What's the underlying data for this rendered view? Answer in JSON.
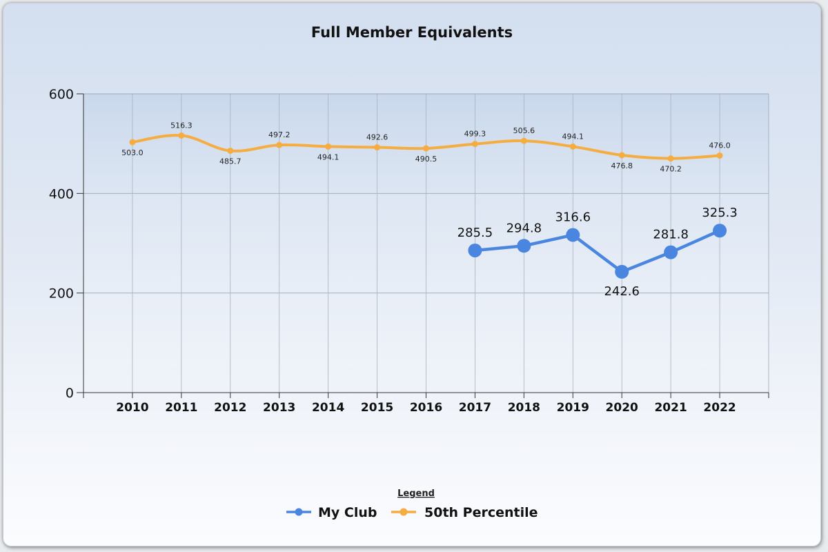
{
  "chart_data": {
    "type": "line",
    "title": "Full Member Equivalents",
    "categories": [
      "2010",
      "2011",
      "2012",
      "2013",
      "2014",
      "2015",
      "2016",
      "2017",
      "2018",
      "2019",
      "2020",
      "2021",
      "2022"
    ],
    "yticks": [
      "0",
      "200",
      "400",
      "600"
    ],
    "ylim": [
      0,
      600
    ],
    "grid": true,
    "legend_title": "Legend",
    "legend_position": "bottom-center",
    "series": [
      {
        "name": "My Club",
        "color": "#4a86e0",
        "values": [
          null,
          null,
          null,
          null,
          null,
          null,
          null,
          285.5,
          294.8,
          316.6,
          242.6,
          281.8,
          325.3
        ],
        "labels": [
          "",
          "",
          "",
          "",
          "",
          "",
          "",
          "285.5",
          "294.8",
          "316.6",
          "242.6",
          "281.8",
          "325.3"
        ]
      },
      {
        "name": "50th Percentile",
        "color": "#f5ad42",
        "values": [
          503.0,
          516.3,
          485.7,
          497.2,
          494.1,
          492.6,
          490.5,
          499.3,
          505.6,
          494.1,
          476.8,
          470.2,
          476.0
        ],
        "labels": [
          "503.0",
          "516.3",
          "485.7",
          "497.2",
          "494.1",
          "492.6",
          "490.5",
          "499.3",
          "505.6",
          "494.1",
          "476.8",
          "470.2",
          "476.0"
        ]
      }
    ]
  }
}
